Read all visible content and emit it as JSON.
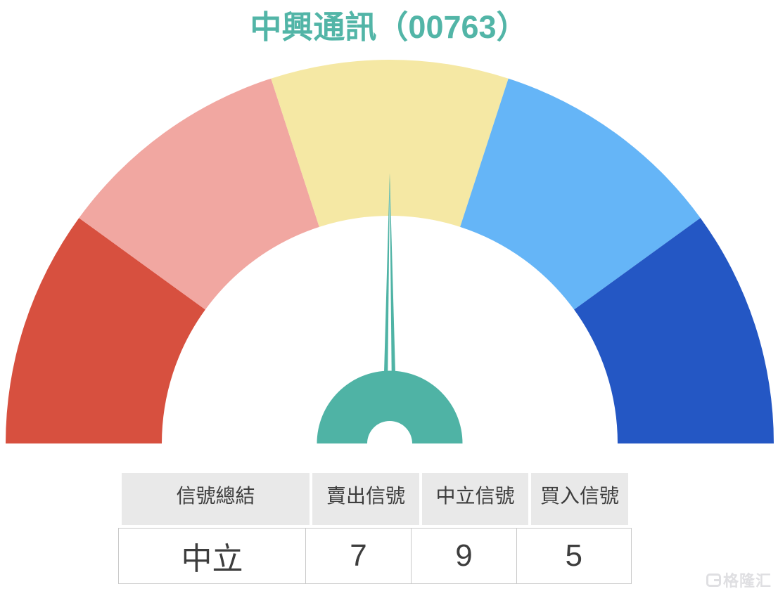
{
  "chart_data": [
    {
      "type": "pie",
      "subtype": "half-donut-gauge",
      "title": "中興通訊（00763）",
      "title_color": "#52b5a7",
      "segments": [
        {
          "name": "strong-sell-zone",
          "color": "#d7503f",
          "start_deg_from_left": 0,
          "end_deg_from_left": 36
        },
        {
          "name": "sell-zone",
          "color": "#f1a7a1",
          "start_deg_from_left": 36,
          "end_deg_from_left": 72
        },
        {
          "name": "neutral-zone",
          "color": "#f5e8a4",
          "start_deg_from_left": 72,
          "end_deg_from_left": 108
        },
        {
          "name": "buy-zone",
          "color": "#65b5f7",
          "start_deg_from_left": 108,
          "end_deg_from_left": 144
        },
        {
          "name": "strong-buy-zone",
          "color": "#2457c4",
          "start_deg_from_left": 144,
          "end_deg_from_left": 180
        }
      ],
      "needle_angle_deg_from_left": 90,
      "needle_color": "#4fb3a5",
      "needle_reading": "中立",
      "legend": "none",
      "axis_labels": "none"
    },
    {
      "type": "table",
      "columns": [
        "信號總結",
        "賣出信號",
        "中立信號",
        "買入信號"
      ],
      "rows": [
        [
          "中立",
          "7",
          "9",
          "5"
        ]
      ],
      "header_background": "#e9e9e9",
      "text_color": "#3d3d3d"
    }
  ],
  "watermark": {
    "text": "格隆汇",
    "color": "#dfdfe2"
  }
}
